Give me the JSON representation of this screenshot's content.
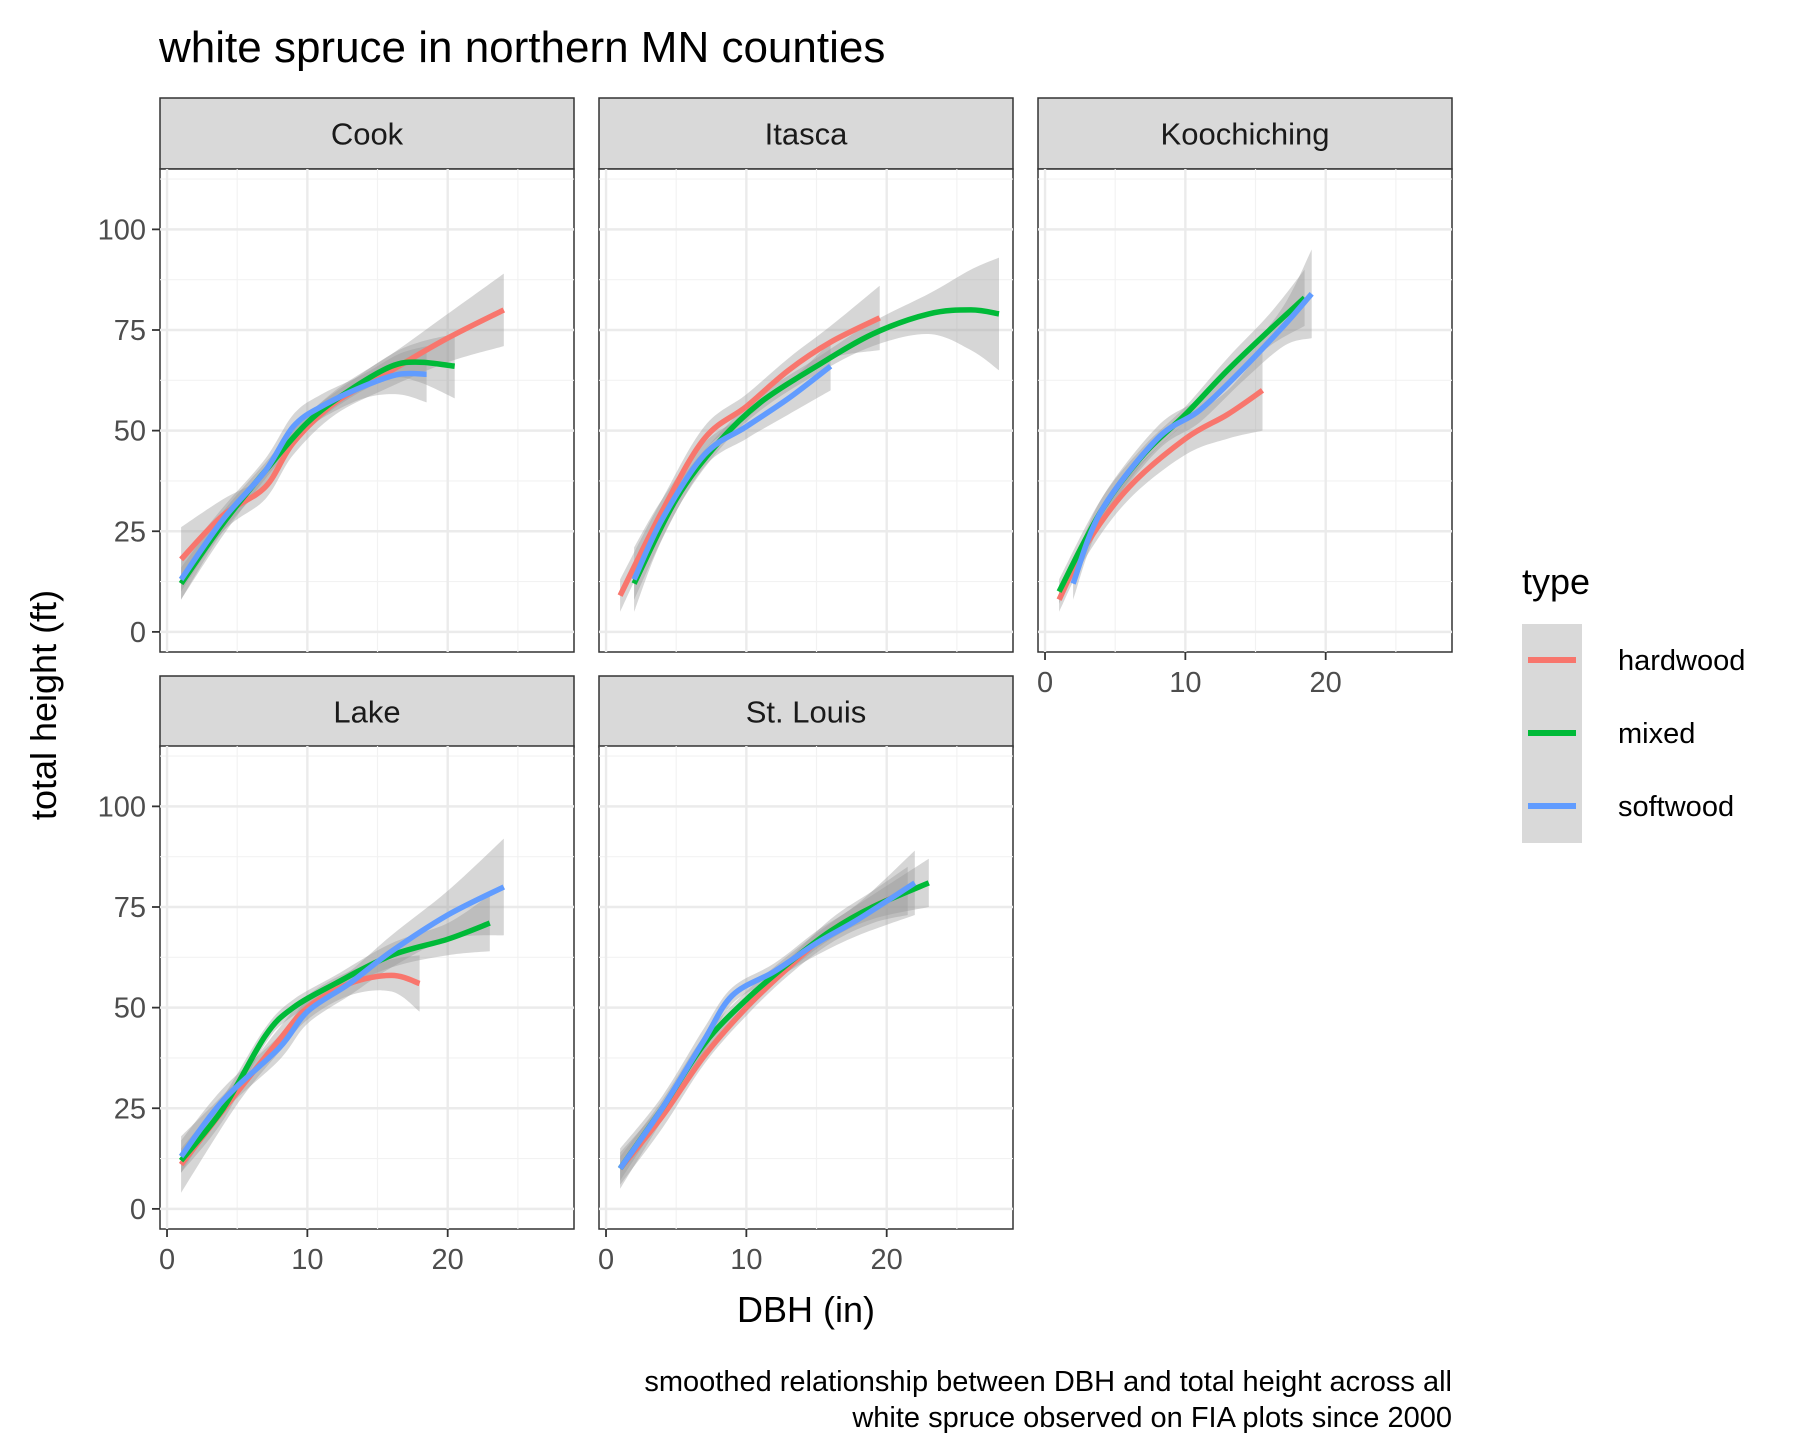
{
  "chart_data": {
    "type": "line",
    "title": "white spruce in northern MN counties",
    "xlabel": "DBH (in)",
    "ylabel": "total height (ft)",
    "caption_lines": [
      "smoothed relationship between DBH and total height across all",
      "white spruce observed on FIA plots since 2000"
    ],
    "xlim": [
      -0.5,
      29
    ],
    "ylim": [
      -5,
      115
    ],
    "x_ticks": [
      0,
      10,
      20
    ],
    "y_ticks": [
      0,
      25,
      50,
      75,
      100
    ],
    "x_tick_labels": [
      "0",
      "10",
      "20"
    ],
    "y_tick_labels": [
      "0",
      "25",
      "50",
      "75",
      "100"
    ],
    "grid": true,
    "legend": {
      "title": "type",
      "position": "right",
      "items": [
        {
          "label": "hardwood",
          "color": "#F8766D"
        },
        {
          "label": "mixed",
          "color": "#00BA38"
        },
        {
          "label": "softwood",
          "color": "#619CFF"
        }
      ]
    },
    "panels": [
      {
        "label": "Cook",
        "series": [
          {
            "name": "hardwood",
            "color": "#F8766D",
            "x": [
              1,
              4,
              7,
              9,
              12,
              16,
              20,
              24
            ],
            "y": [
              18,
              29,
              36,
              47,
              57,
              65,
              73,
              80
            ],
            "band": [
              8,
              4,
              3,
              3,
              3,
              4,
              6,
              9
            ]
          },
          {
            "name": "mixed",
            "color": "#00BA38",
            "x": [
              1,
              4,
              7,
              10,
              13,
              16,
              18,
              20.5
            ],
            "y": [
              12,
              27,
              40,
              52,
              60,
              66,
              67,
              66
            ],
            "band": [
              4,
              3,
              2,
              2,
              2,
              3,
              5,
              8
            ]
          },
          {
            "name": "softwood",
            "color": "#619CFF",
            "x": [
              1,
              4,
              7,
              9,
              11,
              14,
              16.5,
              18.5
            ],
            "y": [
              13,
              28,
              40,
              51,
              56,
              61,
              64,
              64
            ],
            "band": [
              5,
              3,
              3,
              3,
              3,
              3,
              5,
              7
            ]
          }
        ]
      },
      {
        "label": "Itasca",
        "series": [
          {
            "name": "hardwood",
            "color": "#F8766D",
            "x": [
              1,
              4,
              7,
              10,
              13,
              16,
              19.5
            ],
            "y": [
              9,
              30,
              48,
              56,
              65,
              72,
              78
            ],
            "band": [
              4,
              3,
              3,
              3,
              3,
              4,
              8
            ]
          },
          {
            "name": "mixed",
            "color": "#00BA38",
            "x": [
              2,
              5,
              8,
              11,
              15,
              19,
              23,
              26,
              28
            ],
            "y": [
              12,
              33,
              47,
              57,
              66,
              74,
              79,
              80,
              79
            ],
            "band": [
              4,
              3,
              2,
              2,
              2,
              3,
              5,
              10,
              14
            ]
          },
          {
            "name": "softwood",
            "color": "#619CFF",
            "x": [
              2,
              4,
              7,
              10,
              13,
              16
            ],
            "y": [
              13,
              28,
              44,
              51,
              58,
              66
            ],
            "band": [
              8,
              5,
              3,
              3,
              4,
              6
            ]
          }
        ]
      },
      {
        "label": "Koochiching",
        "series": [
          {
            "name": "hardwood",
            "color": "#F8766D",
            "x": [
              1,
              3,
              6,
              10,
              13,
              15.5
            ],
            "y": [
              8,
              22,
              36,
              48,
              54,
              60
            ],
            "band": [
              3,
              3,
              3,
              4,
              6,
              10
            ]
          },
          {
            "name": "mixed",
            "color": "#00BA38",
            "x": [
              1,
              4,
              7,
              10,
              13,
              16,
              18.5
            ],
            "y": [
              10,
              30,
              44,
              54,
              65,
              75,
              83
            ],
            "band": [
              3,
              3,
              2,
              2,
              3,
              4,
              7
            ]
          },
          {
            "name": "softwood",
            "color": "#619CFF",
            "x": [
              2,
              4,
              8,
              11,
              14,
              17,
              19
            ],
            "y": [
              12,
              30,
              48,
              55,
              65,
              76,
              84
            ],
            "band": [
              4,
              3,
              3,
              3,
              3,
              5,
              11
            ]
          }
        ]
      },
      {
        "label": "Lake",
        "series": [
          {
            "name": "hardwood",
            "color": "#F8766D",
            "x": [
              1,
              5,
              8,
              10,
              13,
              16,
              18
            ],
            "y": [
              11,
              29,
              42,
              50,
              56,
              58,
              56
            ],
            "band": [
              7,
              3,
              3,
              3,
              3,
              4,
              7
            ]
          },
          {
            "name": "mixed",
            "color": "#00BA38",
            "x": [
              1,
              4,
              7,
              9,
              12,
              16,
              20,
              23
            ],
            "y": [
              12,
              25,
              43,
              50,
              56,
              63,
              67,
              71
            ],
            "band": [
              3,
              3,
              2,
              2,
              2,
              3,
              4,
              7
            ]
          },
          {
            "name": "softwood",
            "color": "#619CFF",
            "x": [
              1,
              4,
              8,
              10,
              13,
              16,
              20,
              24
            ],
            "y": [
              13,
              27,
              40,
              49,
              56,
              64,
              73,
              80
            ],
            "band": [
              4,
              3,
              3,
              3,
              3,
              4,
              6,
              12
            ]
          }
        ]
      },
      {
        "label": "St. Louis",
        "series": [
          {
            "name": "hardwood",
            "color": "#F8766D",
            "x": [
              1,
              4,
              7,
              10,
              13,
              16,
              19,
              21.5
            ],
            "y": [
              10,
              23,
              38,
              50,
              60,
              69,
              75,
              79
            ],
            "band": [
              4,
              3,
              2,
              2,
              2,
              3,
              4,
              6
            ]
          },
          {
            "name": "mixed",
            "color": "#00BA38",
            "x": [
              1,
              4,
              7,
              10,
              13,
              16,
              19,
              23
            ],
            "y": [
              10,
              25,
              41,
              52,
              61,
              69,
              75,
              81
            ],
            "band": [
              3,
              2,
              2,
              2,
              2,
              2,
              3,
              6
            ]
          },
          {
            "name": "softwood",
            "color": "#619CFF",
            "x": [
              1,
              4,
              7,
              9,
              12,
              15,
              18,
              22
            ],
            "y": [
              10,
              25,
              42,
              53,
              59,
              66,
              72,
              81
            ],
            "band": [
              5,
              3,
              3,
              2,
              2,
              3,
              4,
              8
            ]
          }
        ]
      }
    ]
  }
}
